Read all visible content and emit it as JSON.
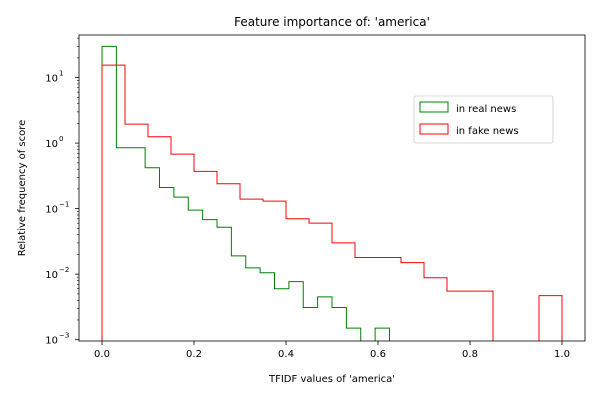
{
  "chart_data": {
    "type": "histogram",
    "title": "Feature importance of: 'america'",
    "xlabel": "TFIDF values of 'america'",
    "ylabel": "Relative frequency of score",
    "xlim": [
      -0.05,
      1.05
    ],
    "ylim_log10": [
      -3.02,
      1.65
    ],
    "yscale": "log",
    "xticks": [
      0.0,
      0.2,
      0.4,
      0.6,
      0.8,
      1.0
    ],
    "xtick_labels": [
      "0.0",
      "0.2",
      "0.4",
      "0.6",
      "0.8",
      "1.0"
    ],
    "yticks": [
      {
        "exp": -3,
        "label": "10",
        "sup": "−3"
      },
      {
        "exp": -2,
        "label": "10",
        "sup": "−2"
      },
      {
        "exp": -1,
        "label": "10",
        "sup": "−1"
      },
      {
        "exp": 0,
        "label": "10",
        "sup": "0"
      },
      {
        "exp": 1,
        "label": "10",
        "sup": "1"
      }
    ],
    "bin_edges": [
      0.0,
      0.05,
      0.1,
      0.15,
      0.2,
      0.25,
      0.3,
      0.35,
      0.4,
      0.45,
      0.5,
      0.55,
      0.6,
      0.65,
      0.7,
      0.75,
      0.8,
      0.85,
      0.9,
      0.95,
      1.0
    ],
    "legend_position": "center-right",
    "series": [
      {
        "name": "in real news",
        "color": "#008000",
        "bin_edges": [
          0.0,
          0.03125,
          0.0625,
          0.09375,
          0.125,
          0.15625,
          0.1875,
          0.21875,
          0.25,
          0.28125,
          0.3125,
          0.34375,
          0.375,
          0.40625,
          0.4375,
          0.46875,
          0.5,
          0.53125,
          0.5625,
          0.59375,
          0.625
        ],
        "values": [
          30,
          0.85,
          0.85,
          0.42,
          0.21,
          0.15,
          0.095,
          0.068,
          0.052,
          0.019,
          0.0125,
          0.0105,
          0.006,
          0.0077,
          0.0031,
          0.0045,
          0.0031,
          0.0015,
          0.0008,
          0.0015
        ]
      },
      {
        "name": "in fake news",
        "color": "#ff0000",
        "values": [
          15.5,
          1.95,
          1.25,
          0.68,
          0.37,
          0.24,
          0.14,
          0.13,
          0.07,
          0.06,
          0.03,
          0.018,
          0.018,
          0.015,
          0.0088,
          0.0055,
          0.0055,
          0.0,
          0.0,
          0.0047
        ]
      }
    ]
  }
}
